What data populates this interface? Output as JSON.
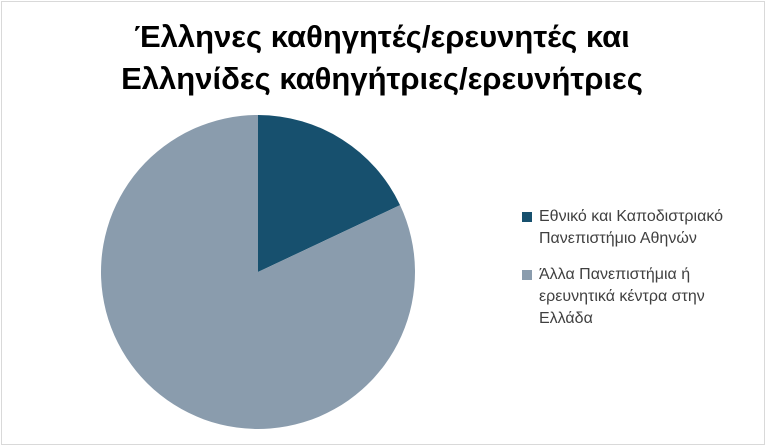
{
  "chart_data": {
    "type": "pie",
    "title_lines": [
      "Έλληνες καθηγητές/ερευνητές και",
      "Ελληνίδες καθηγήτριες/ερευνήτριες"
    ],
    "categories": [
      "Εθνικό και Καποδιστριακό\nΠανεπιστήμιο Αθηνών",
      "Άλλα Πανεπιστήμια ή\nερευνητικά κέντρα στην\nΕλλάδα"
    ],
    "values": [
      18,
      82
    ],
    "colors": [
      "#17506e",
      "#8a9cad"
    ],
    "legend_position": "right",
    "start_angle_deg": 0,
    "direction": "clockwise"
  }
}
